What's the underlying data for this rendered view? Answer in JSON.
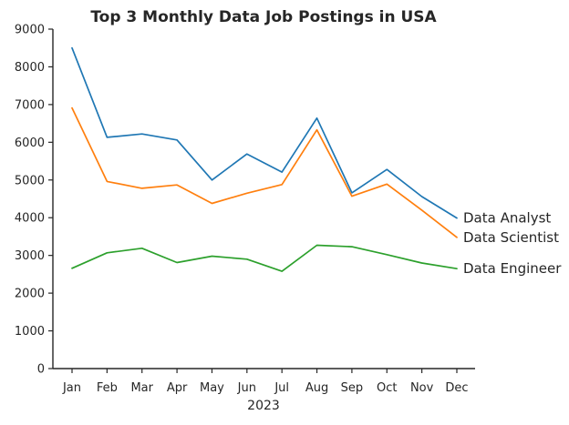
{
  "chart_data": {
    "type": "line",
    "title": "Top 3 Monthly Data Job Postings in USA",
    "xlabel": "2023",
    "ylabel": "",
    "categories": [
      "Jan",
      "Feb",
      "Mar",
      "Apr",
      "May",
      "Jun",
      "Jul",
      "Aug",
      "Sep",
      "Oct",
      "Nov",
      "Dec"
    ],
    "ylim": [
      0,
      9000
    ],
    "yticks": [
      "0",
      "1000",
      "2000",
      "3000",
      "4000",
      "5000",
      "6000",
      "7000",
      "8000",
      "9000"
    ],
    "grid": false,
    "legend": "none; series names labeled at the right end of each line",
    "series": [
      {
        "name": "Data Analyst",
        "color": "#1f77b4",
        "values": [
          8500,
          6130,
          6220,
          6060,
          5000,
          5690,
          5210,
          6640,
          4660,
          5280,
          4560,
          3990
        ]
      },
      {
        "name": "Data Scientist",
        "color": "#ff7f0e",
        "values": [
          6910,
          4960,
          4780,
          4870,
          4380,
          4650,
          4880,
          6330,
          4570,
          4890,
          4200,
          3480
        ]
      },
      {
        "name": "Data Engineer",
        "color": "#2ca02c",
        "values": [
          2660,
          3070,
          3190,
          2810,
          2980,
          2900,
          2580,
          3270,
          3230,
          3020,
          2800,
          2650
        ]
      }
    ]
  }
}
